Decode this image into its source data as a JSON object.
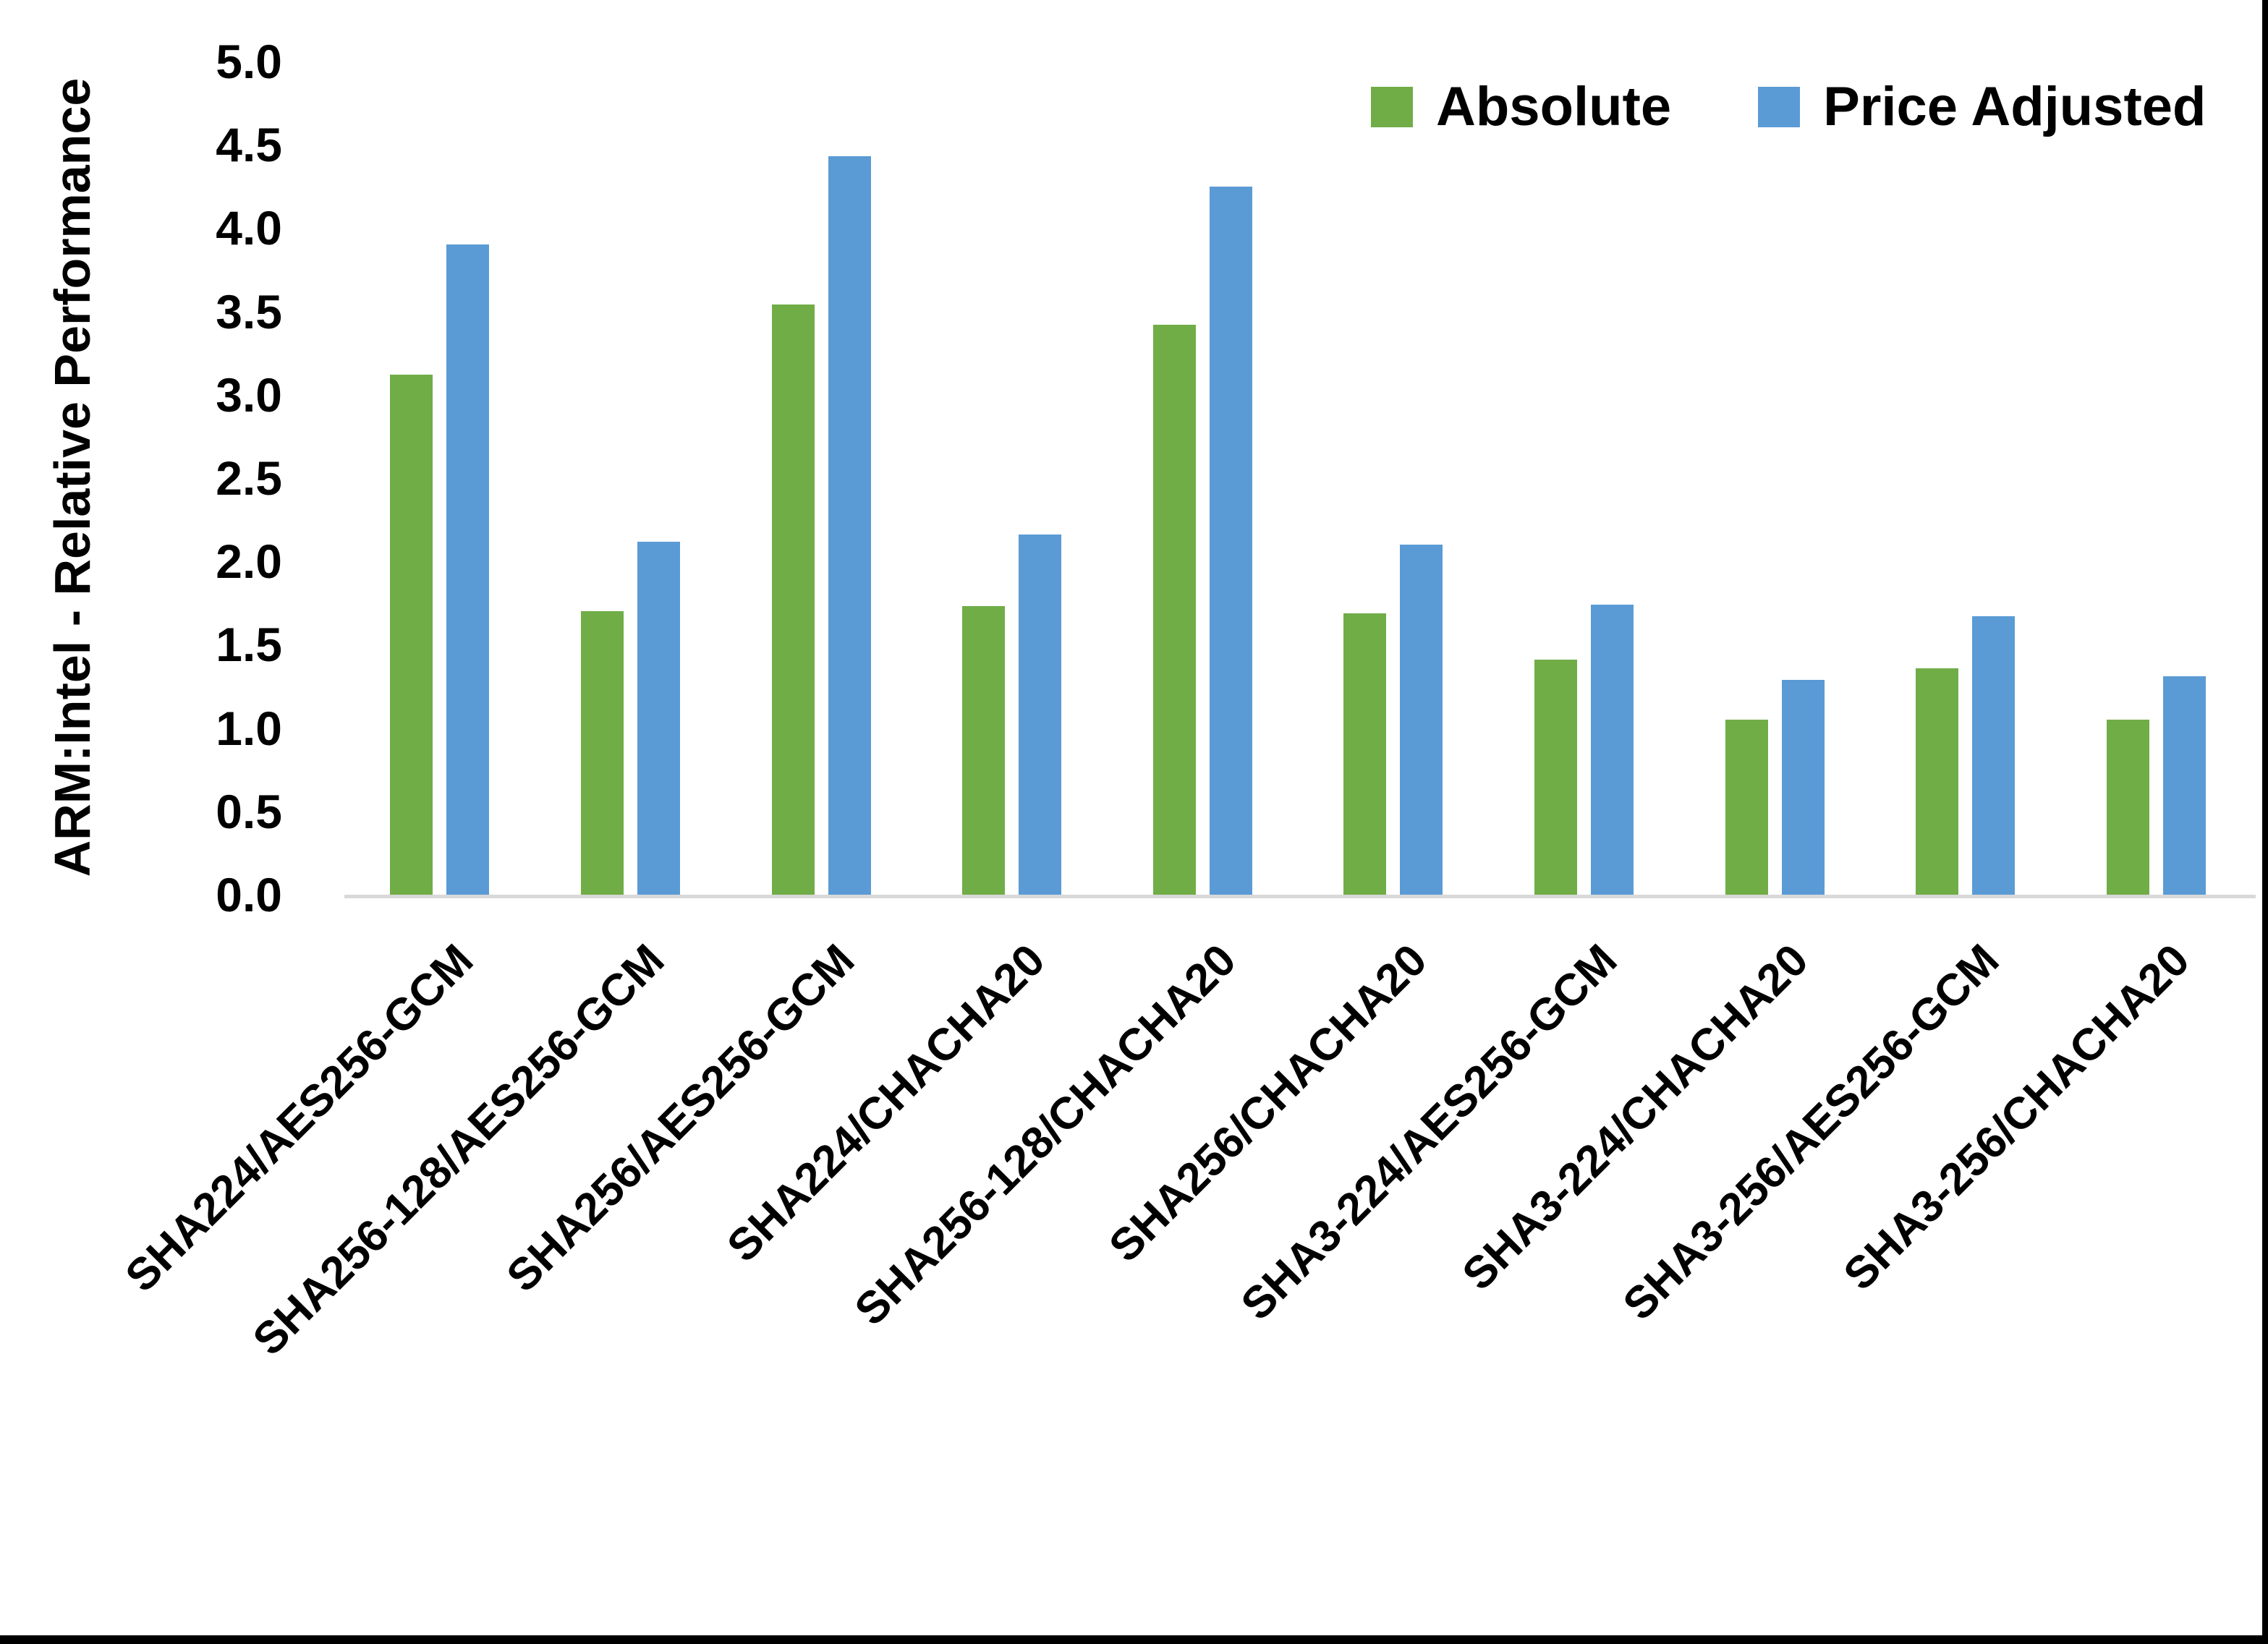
{
  "chart_data": {
    "type": "bar",
    "title": "",
    "xlabel": "",
    "ylabel": "ARM:Intel - Relative Performance",
    "ylim": [
      0,
      5
    ],
    "ytick_step": 0.5,
    "ytick_labels": [
      "0.0",
      "0.5",
      "1.0",
      "1.5",
      "2.0",
      "2.5",
      "3.0",
      "3.5",
      "4.0",
      "4.5",
      "5.0"
    ],
    "grid": "none",
    "legend_position": "top-right",
    "baseline_color": "#d9d9d9",
    "categories": [
      "SHA224/AES256-GCM",
      "SHA256-128/AES256-GCM",
      "SHA256/AES256-GCM",
      "SHA224/CHACHA20",
      "SHA256-128/CHACHA20",
      "SHA256/CHACHA20",
      "SHA3-224/AES256-GCM",
      "SHA3-224/CHACHA20",
      "SHA3-256/AES256-GCM",
      "SHA3-256/CHACHA20"
    ],
    "series": [
      {
        "name": "Absolute",
        "color": "#70AD47",
        "values": [
          3.12,
          1.7,
          3.54,
          1.73,
          3.42,
          1.69,
          1.41,
          1.05,
          1.36,
          1.05
        ]
      },
      {
        "name": "Price Adjusted",
        "color": "#5B9BD5",
        "values": [
          3.9,
          2.12,
          4.43,
          2.16,
          4.25,
          2.1,
          1.74,
          1.29,
          1.67,
          1.31
        ]
      }
    ]
  },
  "frame": {
    "border_color": "#000000"
  }
}
